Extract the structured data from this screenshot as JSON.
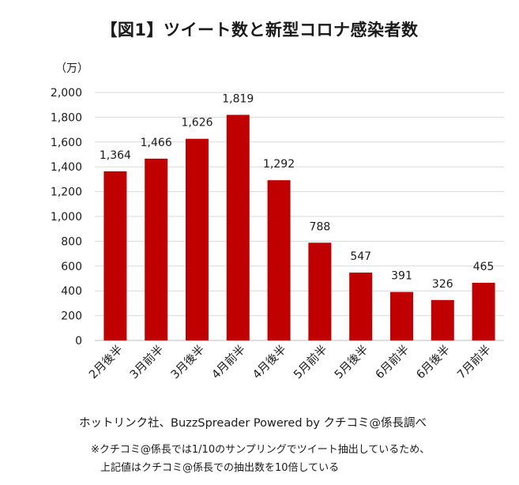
{
  "chart_data": {
    "type": "bar",
    "title": "【図1】ツイート数と新型コロナ感染者数",
    "unit_label": "（万）",
    "categories": [
      "2月後半",
      "3月前半",
      "3月後半",
      "4月前半",
      "4月後半",
      "5月前半",
      "5月後半",
      "6月前半",
      "6月後半",
      "7月前半"
    ],
    "values": [
      1364,
      1466,
      1626,
      1819,
      1292,
      788,
      547,
      391,
      326,
      465
    ],
    "data_labels": [
      "1,364",
      "1,466",
      "1,626",
      "1,819",
      "1,292",
      "788",
      "547",
      "391",
      "326",
      "465"
    ],
    "yticks": [
      "0",
      "200",
      "400",
      "600",
      "800",
      "1,000",
      "1,200",
      "1,400",
      "1,600",
      "1,800",
      "2,000"
    ],
    "ylim": [
      0,
      2000
    ],
    "grid": true,
    "bar_color": "#c00000"
  },
  "footer": {
    "source": "ホットリンク社、BuzzSpreader Powered by クチコミ@係長調べ",
    "note_line1": "※クチコミ@係長では1/10のサンプリングでツイート抽出しているため、",
    "note_line2": "上記値はクチコミ@係長での抽出数を10倍している"
  }
}
